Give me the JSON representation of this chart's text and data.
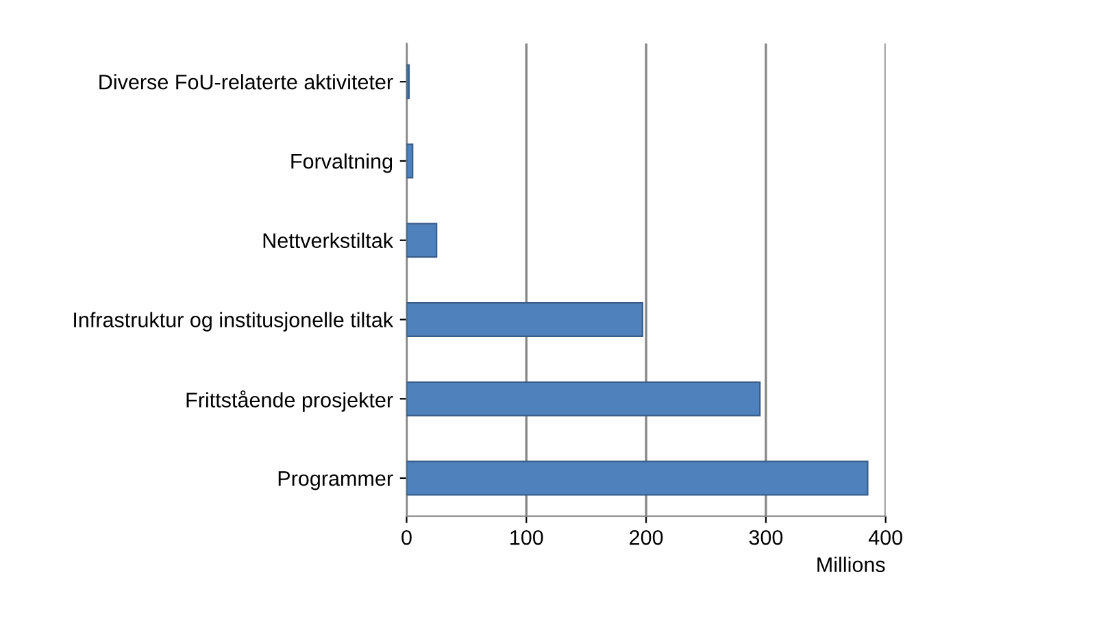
{
  "chart_data": {
    "type": "bar",
    "orientation": "horizontal",
    "xlabel": "Millions",
    "categories": [
      "Diverse FoU-relaterte aktiviteter",
      "Forvaltning",
      "Nettverkstiltak",
      "Infrastruktur og institusjonelle tiltak",
      "Frittstående prosjekter",
      "Programmer"
    ],
    "values": [
      2,
      5,
      25,
      197,
      295,
      385
    ],
    "color": "#4f81bd",
    "xlim": [
      0,
      400
    ],
    "xticks": [
      0,
      100,
      200,
      300,
      400
    ],
    "grid": "x"
  }
}
